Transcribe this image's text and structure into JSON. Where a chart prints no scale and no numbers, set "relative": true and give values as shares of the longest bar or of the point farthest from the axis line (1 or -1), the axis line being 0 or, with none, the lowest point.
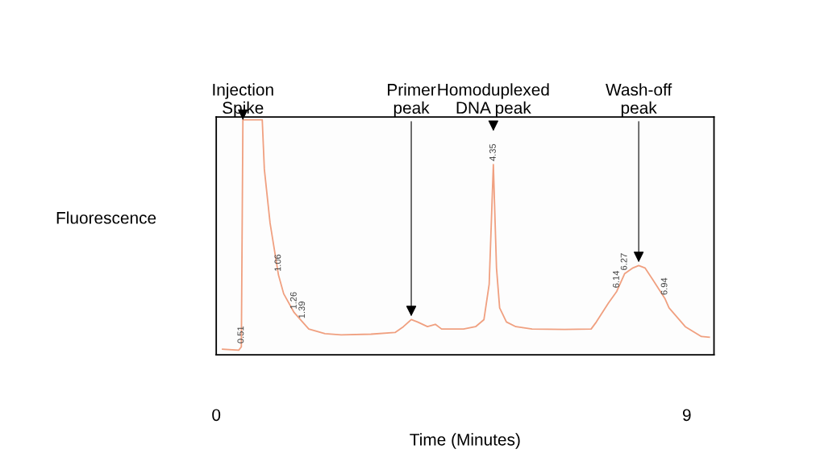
{
  "chart_data": {
    "type": "line",
    "relative": true,
    "xlabel": "Time (Minutes)",
    "ylabel": "Fluorescence",
    "x": [
      0.12,
      0.43,
      0.48,
      0.51,
      0.88,
      0.92,
      1.03,
      1.19,
      1.29,
      1.49,
      1.65,
      1.77,
      2.08,
      2.39,
      2.96,
      3.42,
      3.58,
      3.73,
      3.85,
      4.04,
      4.19,
      4.31,
      4.5,
      4.73,
      4.96,
      5.12,
      5.22,
      5.3,
      5.36,
      5.42,
      5.55,
      5.73,
      6.04,
      6.66,
      7.17,
      7.27,
      7.5,
      7.66,
      7.81,
      7.97,
      8.08,
      8.2,
      8.35,
      8.58,
      8.66,
      8.97,
      9.28,
      9.43
    ],
    "values": [
      0.024,
      0.02,
      0.034,
      1.0,
      1.0,
      0.79,
      0.56,
      0.34,
      0.26,
      0.18,
      0.14,
      0.11,
      0.09,
      0.085,
      0.088,
      0.095,
      0.12,
      0.15,
      0.14,
      0.12,
      0.13,
      0.11,
      0.11,
      0.11,
      0.12,
      0.15,
      0.3,
      0.81,
      0.37,
      0.2,
      0.14,
      0.12,
      0.11,
      0.108,
      0.11,
      0.14,
      0.22,
      0.27,
      0.345,
      0.37,
      0.38,
      0.37,
      0.32,
      0.24,
      0.2,
      0.12,
      0.078,
      0.075
    ],
    "color": "#f0a080",
    "xlim": [
      0,
      9.52
    ],
    "xticks": [
      0,
      9
    ],
    "grid": false,
    "marker": "none",
    "line_style": "solid",
    "annotations": [
      {
        "text": "Injection\nSpike",
        "x": 0.51,
        "y": 1.0
      },
      {
        "text": "Primer\npeak",
        "x": 3.73,
        "y": 0.15
      },
      {
        "text": "Homoduplexed\nDNA peak",
        "x": 5.3,
        "y": 0.81
      },
      {
        "text": "Wash-off\npeak",
        "x": 8.08,
        "y": 0.38
      },
      {
        "text": "0.51",
        "x": 0.48,
        "y": 0.034
      },
      {
        "text": "1.06",
        "x": 1.19,
        "y": 0.34
      },
      {
        "text": "1.26",
        "x": 1.49,
        "y": 0.18
      },
      {
        "text": "1.39",
        "x": 1.65,
        "y": 0.14
      },
      {
        "text": "4.35",
        "x": 5.3,
        "y": 0.81
      },
      {
        "text": "6.14",
        "x": 7.66,
        "y": 0.27
      },
      {
        "text": "6.27",
        "x": 7.81,
        "y": 0.345
      },
      {
        "text": "6.94",
        "x": 8.58,
        "y": 0.24
      }
    ]
  }
}
